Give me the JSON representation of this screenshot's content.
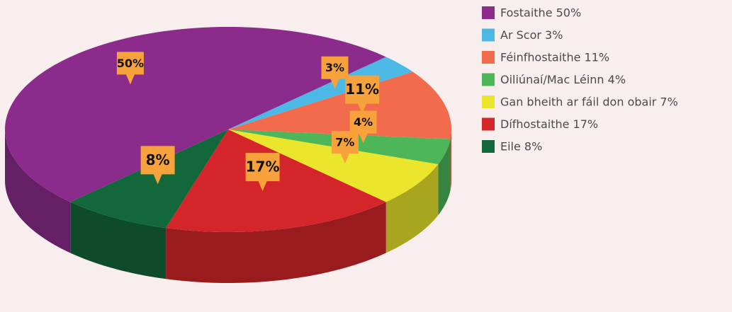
{
  "chart_data": {
    "type": "pie",
    "categories": [
      "Fostaithe 50%",
      "Ar Scor 3%",
      "Féinfhostaithe 11%",
      "Oiliúnaí/Mac Léinn 4%",
      "Gan bheith ar fáil don obair 7%",
      "Dífhostaithe 17%",
      "Eile 8%"
    ],
    "values": [
      50,
      3,
      11,
      4,
      7,
      17,
      8
    ],
    "value_labels": [
      "50%",
      "3%",
      "11%",
      "4%",
      "7%",
      "17%",
      "8%"
    ],
    "colors": [
      "#8b2b8c",
      "#4cb8e6",
      "#f26b4c",
      "#4db659",
      "#ebe52b",
      "#d4262a",
      "#12683a"
    ]
  }
}
